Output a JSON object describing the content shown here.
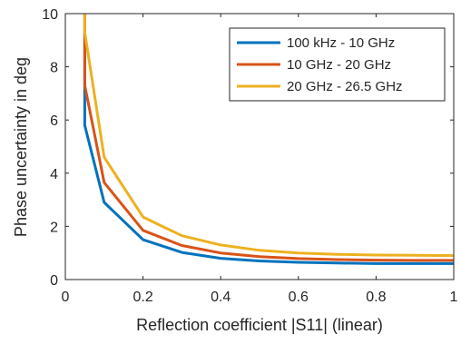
{
  "chart_data": {
    "type": "line",
    "title": "",
    "xlabel": "Reflection coefficient |S11| (linear)",
    "ylabel": "Phase uncertainty in deg",
    "xlim": [
      0,
      1
    ],
    "ylim": [
      0,
      10
    ],
    "xticks": [
      0,
      0.2,
      0.4,
      0.6,
      0.8,
      1
    ],
    "yticks": [
      0,
      2,
      4,
      6,
      8,
      10
    ],
    "xtick_labels": [
      "0",
      "0.2",
      "0.4",
      "0.6",
      "0.8",
      "1"
    ],
    "ytick_labels": [
      "0",
      "2",
      "4",
      "6",
      "8",
      "10"
    ],
    "grid": false,
    "box": true,
    "legend_position": "top-right",
    "x": [
      0.05,
      0.1,
      0.2,
      0.3,
      0.4,
      0.5,
      0.6,
      0.7,
      0.8,
      0.9,
      1.0
    ],
    "series": [
      {
        "name": "100 kHz - 10 GHz",
        "color": "#0072BD",
        "values": [
          5.8,
          2.9,
          1.5,
          1.02,
          0.8,
          0.7,
          0.65,
          0.62,
          0.6,
          0.6,
          0.6
        ],
        "continues_above_top": 10.0
      },
      {
        "name": "10 GHz - 20 GHz",
        "color": "#D95319",
        "values": [
          7.3,
          3.65,
          1.85,
          1.28,
          1.0,
          0.86,
          0.79,
          0.75,
          0.73,
          0.72,
          0.72
        ],
        "continues_above_top": 10.0
      },
      {
        "name": "20 GHz - 26.5 GHz",
        "color": "#EDB120",
        "values": [
          9.3,
          4.6,
          2.35,
          1.65,
          1.3,
          1.1,
          1.0,
          0.95,
          0.92,
          0.91,
          0.9
        ],
        "continues_above_top": 10.0
      }
    ]
  }
}
